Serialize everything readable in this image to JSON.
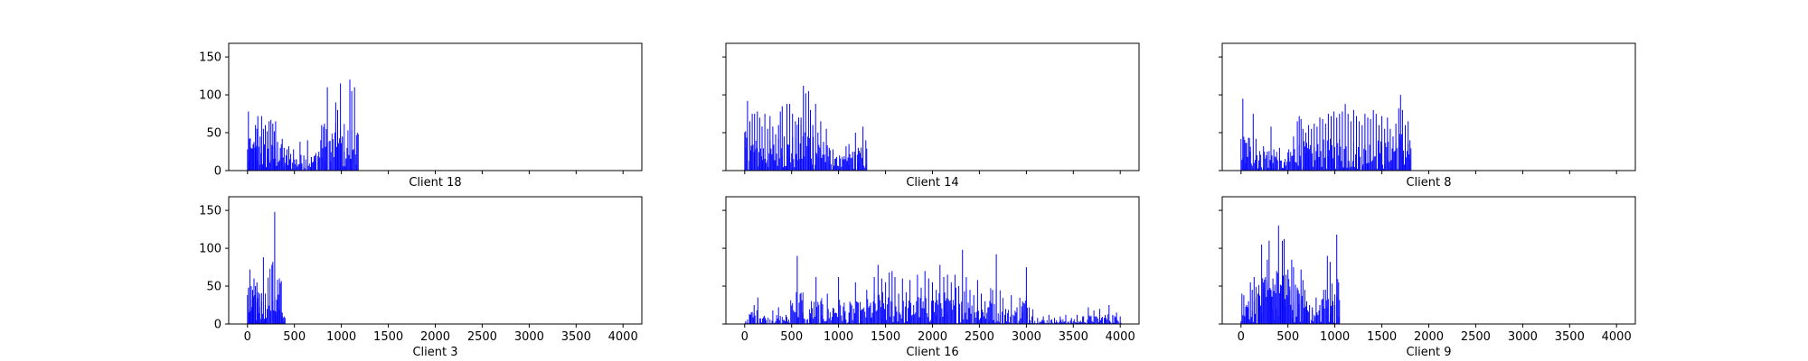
{
  "chart_data": {
    "type": "bar",
    "layout": "2x3 grid of histogram panels with shared x and y axes",
    "bar_color": "#0000ff",
    "frame_color": "#000000",
    "xlim": [
      -200,
      4200
    ],
    "ylim": [
      0,
      168
    ],
    "x_ticks": [
      0,
      500,
      1000,
      1500,
      2000,
      2500,
      3000,
      3500,
      4000
    ],
    "y_ticks": [
      0,
      50,
      100,
      150
    ],
    "grid": false,
    "panels": [
      {
        "label": "Client 18",
        "x_max": 1180,
        "peaks": [
          [
            10,
            78
          ],
          [
            20,
            42
          ],
          [
            40,
            30
          ],
          [
            60,
            35
          ],
          [
            85,
            60
          ],
          [
            100,
            55
          ],
          [
            110,
            72
          ],
          [
            135,
            45
          ],
          [
            150,
            72
          ],
          [
            170,
            55
          ],
          [
            190,
            60
          ],
          [
            210,
            52
          ],
          [
            230,
            65
          ],
          [
            250,
            67
          ],
          [
            270,
            62
          ],
          [
            285,
            52
          ],
          [
            300,
            65
          ],
          [
            320,
            38
          ],
          [
            350,
            30
          ],
          [
            370,
            42
          ],
          [
            390,
            30
          ],
          [
            420,
            28
          ],
          [
            440,
            32
          ],
          [
            460,
            22
          ],
          [
            490,
            28
          ],
          [
            520,
            15
          ],
          [
            560,
            38
          ],
          [
            600,
            20
          ],
          [
            640,
            40
          ],
          [
            680,
            18
          ],
          [
            720,
            12
          ],
          [
            760,
            25
          ],
          [
            790,
            60
          ],
          [
            820,
            62
          ],
          [
            850,
            110
          ],
          [
            890,
            12
          ],
          [
            940,
            90
          ],
          [
            960,
            80
          ],
          [
            990,
            115
          ],
          [
            1010,
            45
          ],
          [
            1030,
            25
          ],
          [
            1050,
            15
          ],
          [
            1090,
            120
          ],
          [
            1110,
            105
          ],
          [
            1140,
            110
          ],
          [
            1160,
            8
          ]
        ]
      },
      {
        "label": "Client 14",
        "x_max": 1300,
        "peaks": [
          [
            10,
            52
          ],
          [
            30,
            92
          ],
          [
            55,
            65
          ],
          [
            80,
            75
          ],
          [
            105,
            75
          ],
          [
            135,
            78
          ],
          [
            160,
            70
          ],
          [
            185,
            58
          ],
          [
            215,
            75
          ],
          [
            245,
            55
          ],
          [
            270,
            72
          ],
          [
            300,
            58
          ],
          [
            330,
            48
          ],
          [
            360,
            60
          ],
          [
            380,
            78
          ],
          [
            400,
            85
          ],
          [
            420,
            45
          ],
          [
            450,
            88
          ],
          [
            480,
            88
          ],
          [
            510,
            75
          ],
          [
            540,
            65
          ],
          [
            575,
            70
          ],
          [
            600,
            70
          ],
          [
            625,
            112
          ],
          [
            650,
            102
          ],
          [
            680,
            105
          ],
          [
            700,
            80
          ],
          [
            725,
            60
          ],
          [
            755,
            88
          ],
          [
            780,
            50
          ],
          [
            810,
            65
          ],
          [
            840,
            38
          ],
          [
            870,
            55
          ],
          [
            900,
            30
          ],
          [
            940,
            28
          ],
          [
            980,
            18
          ],
          [
            1010,
            20
          ],
          [
            1050,
            15
          ],
          [
            1080,
            32
          ],
          [
            1110,
            35
          ],
          [
            1150,
            25
          ],
          [
            1180,
            50
          ],
          [
            1210,
            30
          ],
          [
            1260,
            58
          ],
          [
            1290,
            40
          ]
        ]
      },
      {
        "label": "Client 8",
        "x_max": 1810,
        "peaks": [
          [
            20,
            95
          ],
          [
            40,
            10
          ],
          [
            70,
            18
          ],
          [
            100,
            25
          ],
          [
            130,
            75
          ],
          [
            160,
            42
          ],
          [
            190,
            5
          ],
          [
            240,
            32
          ],
          [
            280,
            25
          ],
          [
            320,
            58
          ],
          [
            350,
            28
          ],
          [
            380,
            15
          ],
          [
            410,
            30
          ],
          [
            460,
            5
          ],
          [
            510,
            28
          ],
          [
            560,
            45
          ],
          [
            600,
            65
          ],
          [
            620,
            72
          ],
          [
            640,
            68
          ],
          [
            660,
            55
          ],
          [
            690,
            50
          ],
          [
            720,
            60
          ],
          [
            750,
            55
          ],
          [
            780,
            62
          ],
          [
            810,
            58
          ],
          [
            840,
            70
          ],
          [
            870,
            68
          ],
          [
            900,
            62
          ],
          [
            930,
            75
          ],
          [
            960,
            72
          ],
          [
            990,
            78
          ],
          [
            1020,
            70
          ],
          [
            1050,
            75
          ],
          [
            1080,
            78
          ],
          [
            1110,
            88
          ],
          [
            1140,
            75
          ],
          [
            1170,
            65
          ],
          [
            1200,
            80
          ],
          [
            1230,
            72
          ],
          [
            1260,
            65
          ],
          [
            1290,
            60
          ],
          [
            1320,
            75
          ],
          [
            1350,
            70
          ],
          [
            1380,
            68
          ],
          [
            1410,
            80
          ],
          [
            1440,
            75
          ],
          [
            1470,
            60
          ],
          [
            1500,
            72
          ],
          [
            1530,
            55
          ],
          [
            1560,
            70
          ],
          [
            1590,
            55
          ],
          [
            1620,
            45
          ],
          [
            1650,
            62
          ],
          [
            1680,
            82
          ],
          [
            1700,
            100
          ],
          [
            1720,
            80
          ],
          [
            1750,
            60
          ],
          [
            1780,
            65
          ],
          [
            1800,
            40
          ]
        ]
      },
      {
        "label": "Client 3",
        "x_max": 400,
        "peaks": [
          [
            10,
            48
          ],
          [
            25,
            72
          ],
          [
            40,
            50
          ],
          [
            55,
            45
          ],
          [
            70,
            60
          ],
          [
            85,
            50
          ],
          [
            100,
            55
          ],
          [
            115,
            42
          ],
          [
            130,
            40
          ],
          [
            150,
            30
          ],
          [
            170,
            88
          ],
          [
            190,
            25
          ],
          [
            210,
            20
          ],
          [
            240,
            18
          ],
          [
            270,
            82
          ],
          [
            290,
            148
          ],
          [
            310,
            12
          ],
          [
            330,
            20
          ],
          [
            350,
            18
          ],
          [
            370,
            15
          ],
          [
            390,
            10
          ]
        ]
      },
      {
        "label": "Client 16",
        "x_max": 4010,
        "peaks": [
          [
            60,
            12
          ],
          [
            100,
            25
          ],
          [
            140,
            35
          ],
          [
            220,
            8
          ],
          [
            300,
            18
          ],
          [
            360,
            22
          ],
          [
            440,
            12
          ],
          [
            520,
            18
          ],
          [
            560,
            90
          ],
          [
            620,
            15
          ],
          [
            700,
            8
          ],
          [
            760,
            62
          ],
          [
            820,
            12
          ],
          [
            880,
            40
          ],
          [
            940,
            18
          ],
          [
            1000,
            62
          ],
          [
            1060,
            15
          ],
          [
            1120,
            15
          ],
          [
            1180,
            55
          ],
          [
            1240,
            18
          ],
          [
            1300,
            45
          ],
          [
            1340,
            28
          ],
          [
            1380,
            62
          ],
          [
            1420,
            78
          ],
          [
            1460,
            60
          ],
          [
            1500,
            55
          ],
          [
            1540,
            68
          ],
          [
            1570,
            70
          ],
          [
            1600,
            62
          ],
          [
            1640,
            40
          ],
          [
            1680,
            60
          ],
          [
            1720,
            42
          ],
          [
            1760,
            58
          ],
          [
            1800,
            25
          ],
          [
            1840,
            65
          ],
          [
            1880,
            48
          ],
          [
            1920,
            70
          ],
          [
            1960,
            60
          ],
          [
            2000,
            55
          ],
          [
            2040,
            45
          ],
          [
            2080,
            78
          ],
          [
            2120,
            62
          ],
          [
            2160,
            65
          ],
          [
            2200,
            55
          ],
          [
            2240,
            65
          ],
          [
            2280,
            50
          ],
          [
            2320,
            98
          ],
          [
            2360,
            62
          ],
          [
            2400,
            45
          ],
          [
            2440,
            38
          ],
          [
            2480,
            58
          ],
          [
            2520,
            40
          ],
          [
            2560,
            30
          ],
          [
            2600,
            22
          ],
          [
            2640,
            45
          ],
          [
            2680,
            92
          ],
          [
            2720,
            12
          ],
          [
            2780,
            20
          ],
          [
            2840,
            38
          ],
          [
            2900,
            22
          ],
          [
            2960,
            15
          ],
          [
            3000,
            75
          ],
          [
            3060,
            10
          ],
          [
            3120,
            8
          ],
          [
            3180,
            10
          ],
          [
            3240,
            12
          ],
          [
            3300,
            8
          ],
          [
            3360,
            10
          ],
          [
            3420,
            12
          ],
          [
            3480,
            8
          ],
          [
            3540,
            12
          ],
          [
            3600,
            10
          ],
          [
            3660,
            22
          ],
          [
            3720,
            18
          ],
          [
            3780,
            20
          ],
          [
            3840,
            12
          ],
          [
            3880,
            25
          ],
          [
            3920,
            12
          ],
          [
            3960,
            15
          ],
          [
            4000,
            10
          ]
        ]
      },
      {
        "label": "Client 9",
        "x_max": 1050,
        "peaks": [
          [
            10,
            40
          ],
          [
            30,
            38
          ],
          [
            60,
            25
          ],
          [
            80,
            30
          ],
          [
            100,
            55
          ],
          [
            120,
            45
          ],
          [
            140,
            62
          ],
          [
            160,
            35
          ],
          [
            180,
            40
          ],
          [
            200,
            30
          ],
          [
            220,
            105
          ],
          [
            240,
            55
          ],
          [
            260,
            62
          ],
          [
            280,
            85
          ],
          [
            300,
            110
          ],
          [
            320,
            45
          ],
          [
            340,
            60
          ],
          [
            360,
            52
          ],
          [
            380,
            70
          ],
          [
            400,
            130
          ],
          [
            420,
            52
          ],
          [
            440,
            110
          ],
          [
            460,
            112
          ],
          [
            480,
            65
          ],
          [
            500,
            72
          ],
          [
            520,
            45
          ],
          [
            540,
            85
          ],
          [
            560,
            75
          ],
          [
            580,
            52
          ],
          [
            600,
            48
          ],
          [
            620,
            40
          ],
          [
            640,
            72
          ],
          [
            660,
            58
          ],
          [
            680,
            45
          ],
          [
            700,
            30
          ],
          [
            730,
            25
          ],
          [
            760,
            22
          ],
          [
            800,
            35
          ],
          [
            840,
            25
          ],
          [
            880,
            45
          ],
          [
            920,
            90
          ],
          [
            950,
            82
          ],
          [
            980,
            25
          ],
          [
            1000,
            25
          ],
          [
            1020,
            118
          ],
          [
            1040,
            10
          ]
        ]
      }
    ]
  }
}
